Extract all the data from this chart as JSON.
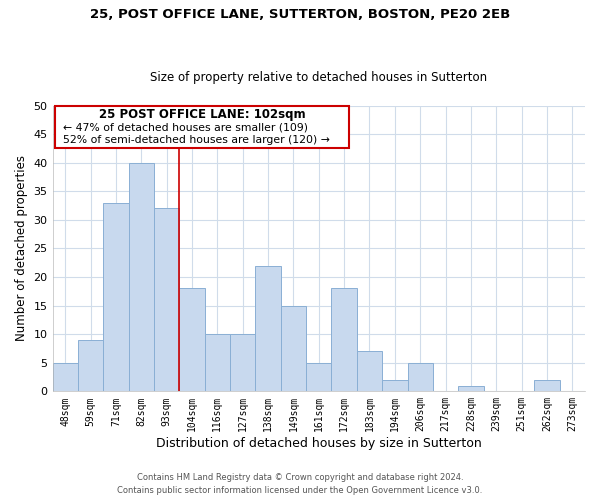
{
  "title1": "25, POST OFFICE LANE, SUTTERTON, BOSTON, PE20 2EB",
  "title2": "Size of property relative to detached houses in Sutterton",
  "xlabel": "Distribution of detached houses by size in Sutterton",
  "ylabel": "Number of detached properties",
  "bar_labels": [
    "48sqm",
    "59sqm",
    "71sqm",
    "82sqm",
    "93sqm",
    "104sqm",
    "116sqm",
    "127sqm",
    "138sqm",
    "149sqm",
    "161sqm",
    "172sqm",
    "183sqm",
    "194sqm",
    "206sqm",
    "217sqm",
    "228sqm",
    "239sqm",
    "251sqm",
    "262sqm",
    "273sqm"
  ],
  "bar_values": [
    5,
    9,
    33,
    40,
    32,
    18,
    10,
    10,
    22,
    15,
    5,
    18,
    7,
    2,
    5,
    0,
    1,
    0,
    0,
    2,
    0
  ],
  "bar_color": "#c8d9ee",
  "bar_edge_color": "#8aafd4",
  "ylim": [
    0,
    50
  ],
  "yticks": [
    0,
    5,
    10,
    15,
    20,
    25,
    30,
    35,
    40,
    45,
    50
  ],
  "property_label": "25 POST OFFICE LANE: 102sqm",
  "annotation_line1": "← 47% of detached houses are smaller (109)",
  "annotation_line2": "52% of semi-detached houses are larger (120) →",
  "vline_x_index": 5,
  "vline_color": "#cc0000",
  "box_color": "#ffffff",
  "box_edge_color": "#cc0000",
  "footer1": "Contains HM Land Registry data © Crown copyright and database right 2024.",
  "footer2": "Contains public sector information licensed under the Open Government Licence v3.0.",
  "bg_color": "#ffffff",
  "grid_color": "#d0dcea"
}
